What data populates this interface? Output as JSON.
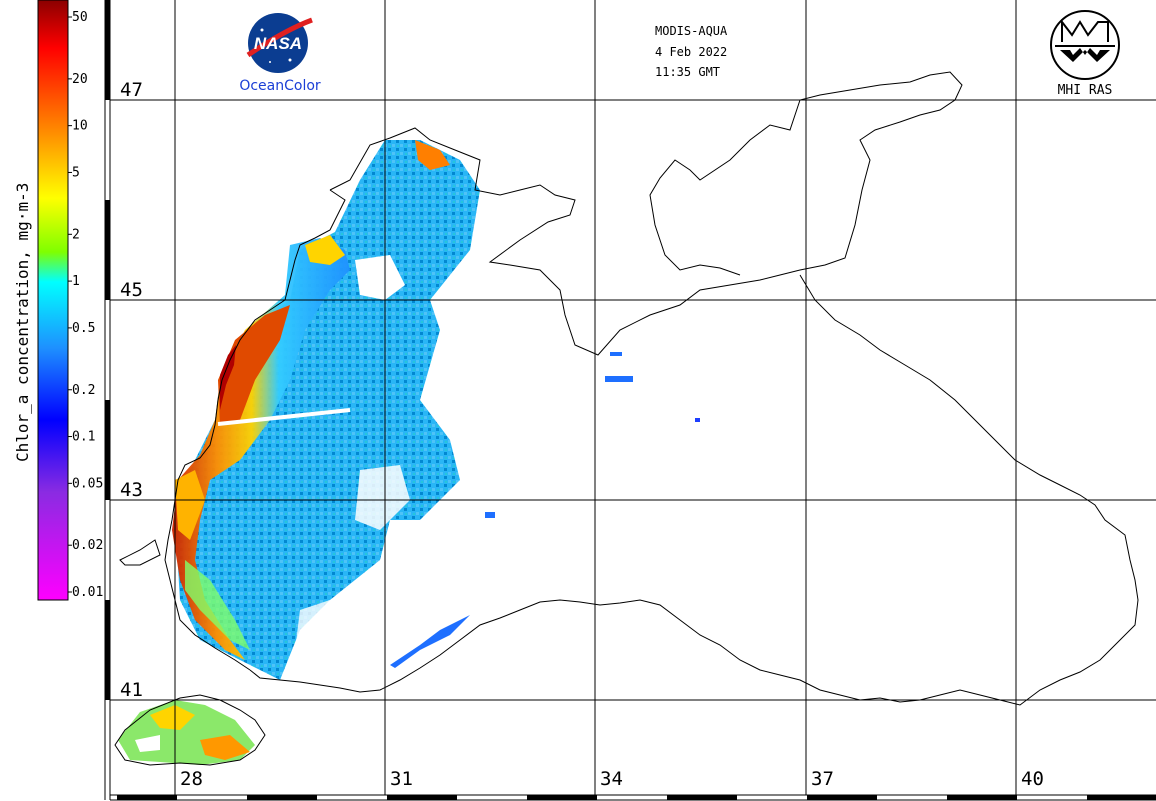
{
  "header": {
    "sensor": "MODIS-AQUA",
    "date": "4 Feb 2022",
    "time": "11:35 GMT"
  },
  "logos": {
    "nasa": "NASA",
    "oceancolor": "OceanColor",
    "mhi": "MHI RAS"
  },
  "colorbar": {
    "title": "Chlor_a concentration, mg·m-3",
    "ticks": [
      "50",
      "20",
      "10",
      "5",
      "2",
      "1",
      "0.5",
      "0.2",
      "0.1",
      "0.05",
      "0.02",
      "0.01"
    ],
    "colors": [
      "#8b0000",
      "#ff0000",
      "#ff8c00",
      "#ffff00",
      "#7fff00",
      "#00ffff",
      "#1e90ff",
      "#0000ff",
      "#8a2be2",
      "#ff00ff"
    ],
    "scale": "log"
  },
  "grid": {
    "latitudes": [
      "47",
      "45",
      "43",
      "41"
    ],
    "longitudes": [
      "28",
      "31",
      "34",
      "37",
      "40"
    ]
  },
  "icons": [
    "nasa-meatball-icon",
    "mhi-ras-emblem-icon"
  ]
}
